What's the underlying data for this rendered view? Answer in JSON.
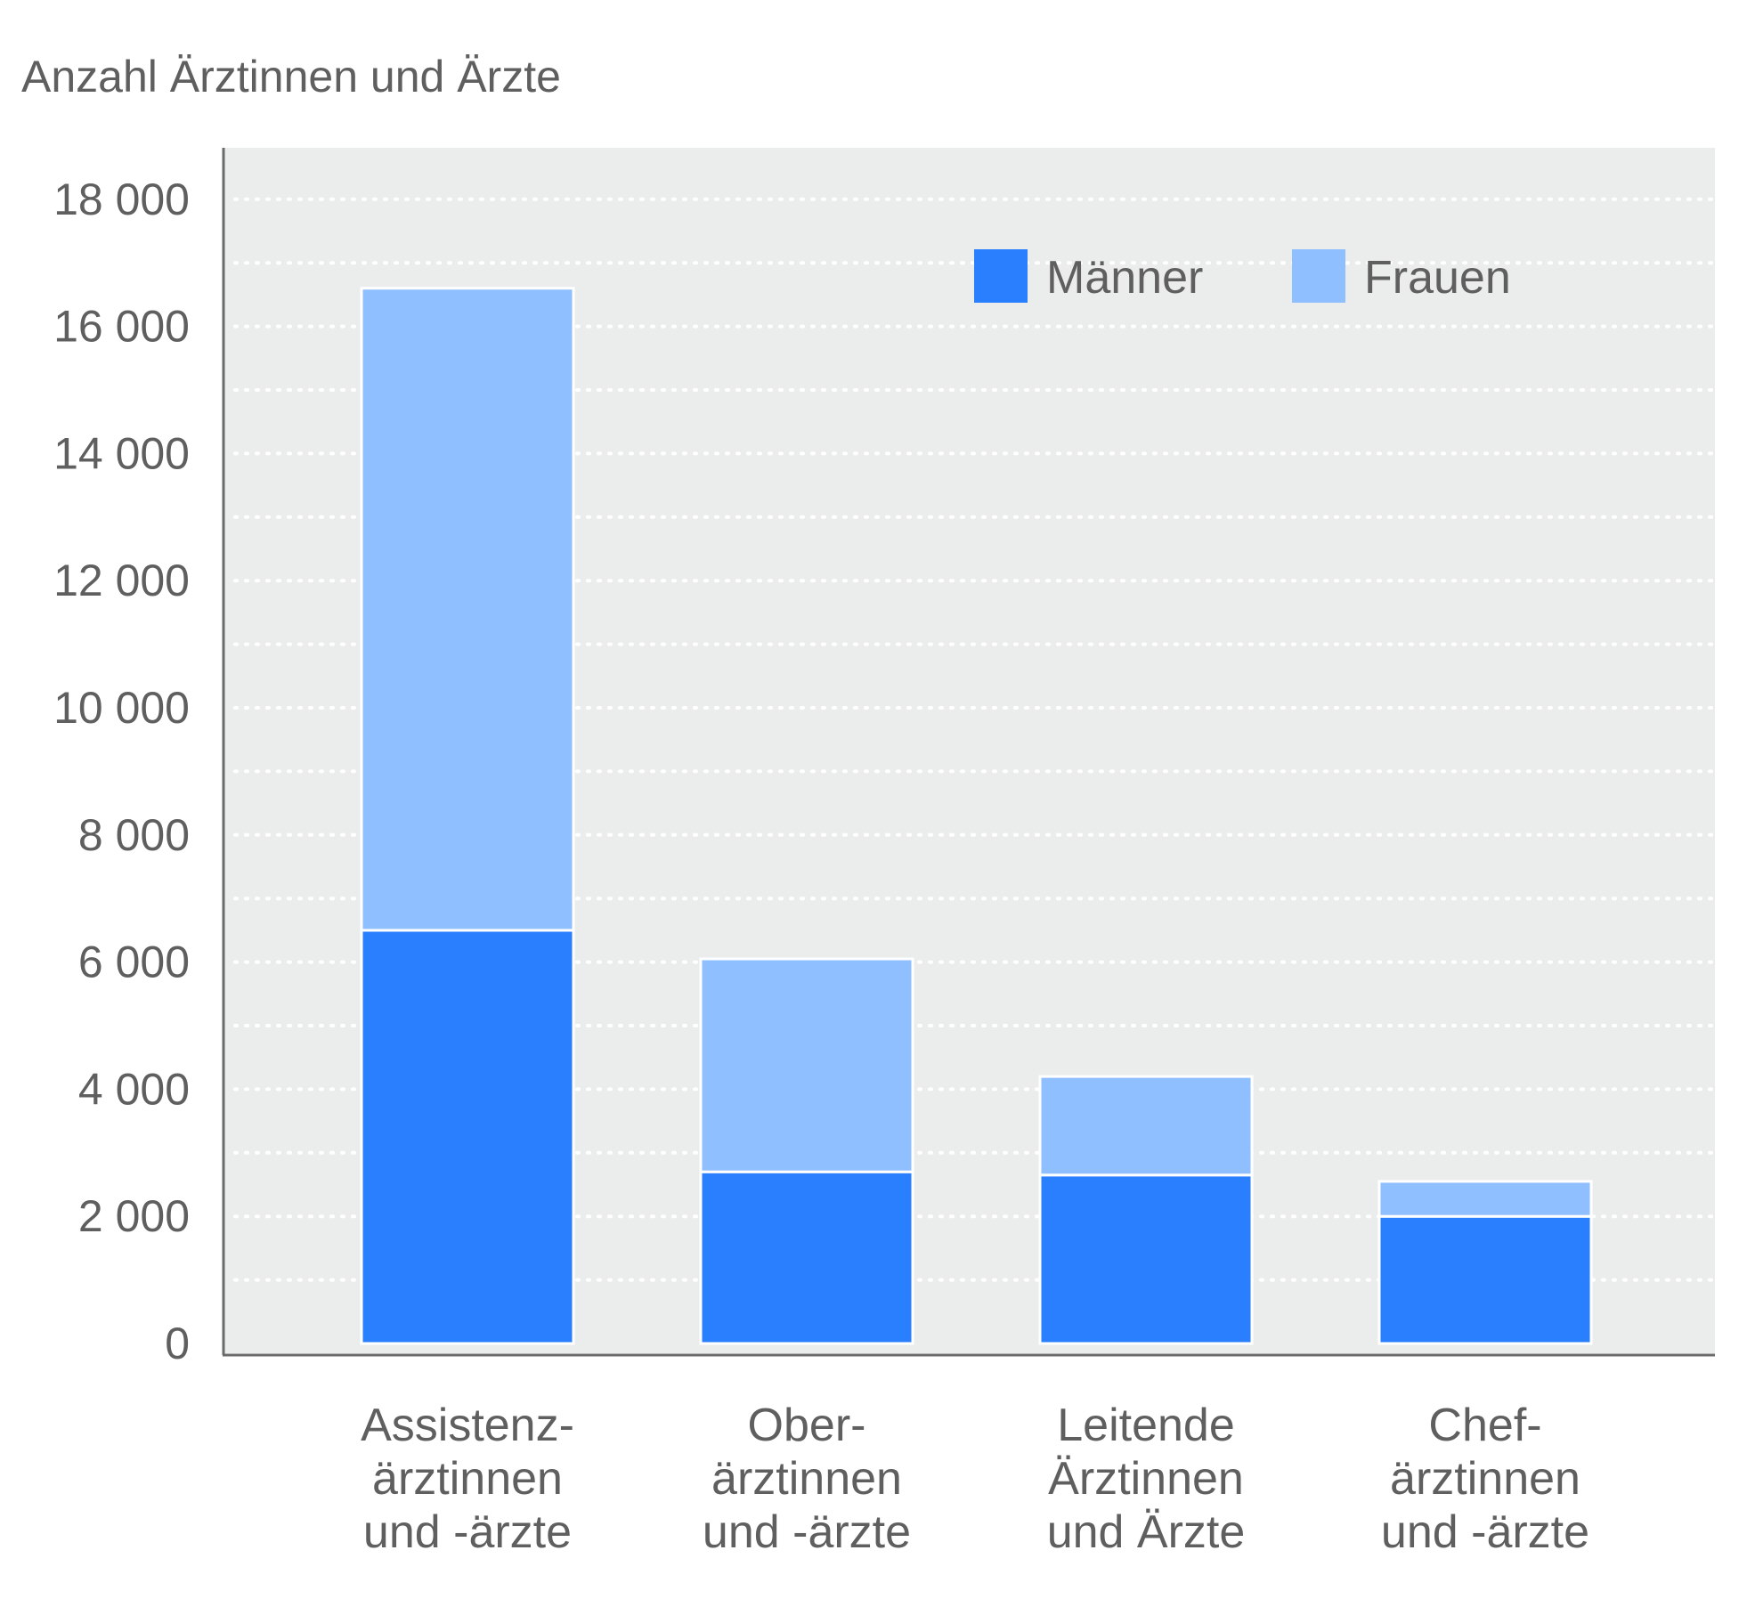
{
  "chart_data": {
    "type": "bar",
    "stacked": true,
    "ylabel": "Anzahl Ärztinnen und Ärzte",
    "ylim": [
      0,
      19000
    ],
    "yticks": [
      0,
      2000,
      4000,
      6000,
      8000,
      10000,
      12000,
      14000,
      16000,
      18000
    ],
    "ytick_labels": [
      "0",
      "2 000",
      "4 000",
      "6 000",
      "8 000",
      "10 000",
      "12 000",
      "14 000",
      "16 000",
      "18 000"
    ],
    "grid": true,
    "legend_position": "top-right",
    "categories": [
      [
        "Assistenz-",
        "ärztinnen",
        "und -ärzte"
      ],
      [
        "Ober-",
        "ärztinnen",
        "und -ärzte"
      ],
      [
        "Leitende",
        "Ärztinnen",
        "und Ärzte"
      ],
      [
        "Chef-",
        "ärztinnen",
        "und -ärzte"
      ]
    ],
    "series": [
      {
        "name": "Männer",
        "color": "#2a7fff",
        "values": [
          6500,
          2700,
          2650,
          2000
        ]
      },
      {
        "name": "Frauen",
        "color": "#8fbfff",
        "values": [
          10100,
          3350,
          1550,
          550
        ]
      }
    ]
  }
}
